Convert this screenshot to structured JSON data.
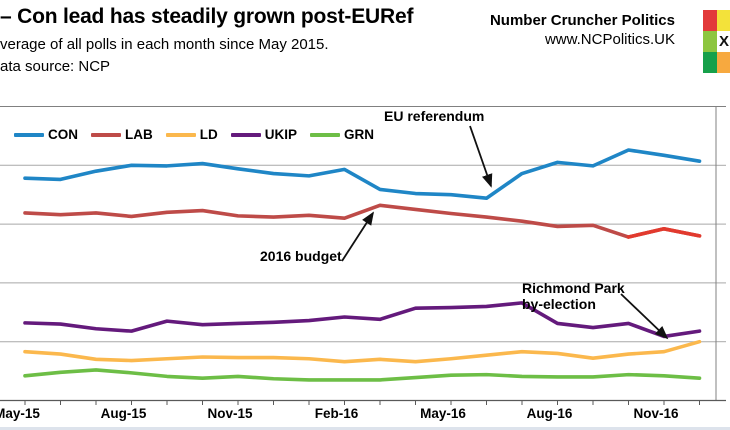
{
  "header": {
    "title": "– Con lead has steadily grown post-EURef",
    "subtitle": "verage of all polls in each month since May 2015.",
    "source": "ata source: NCP",
    "brand_name": "Number Cruncher Politics",
    "brand_url": "www.NCPolitics.UK"
  },
  "logo": {
    "x_glyph": "X",
    "cell_colors": [
      "#e23a3a",
      "#f3e23a",
      "#8dc63f",
      "X",
      "#16a04a",
      "#f7a93f"
    ]
  },
  "colors": {
    "grid": "#a8a8a8",
    "border": "#808080",
    "axis": "#595959",
    "annotation": "#111111"
  },
  "annotations": {
    "eu_referendum": "EU referendum",
    "budget_2016": "2016 budget",
    "richmond_line1": "Richmond Park",
    "richmond_line2": "by-election"
  },
  "chart_data": {
    "type": "line",
    "title": "Con lead has steadily grown post-EURef",
    "x_label": "",
    "y_label": "",
    "ylim": [
      0,
      50
    ],
    "gridline_step": 10,
    "grid": true,
    "legend_position": "top-left",
    "y_axis_labels_visible": false,
    "categories": [
      "May-15",
      "Jun-15",
      "Jul-15",
      "Aug-15",
      "Sep-15",
      "Oct-15",
      "Nov-15",
      "Dec-15",
      "Jan-16",
      "Feb-16",
      "Mar-16",
      "Apr-16",
      "May-16",
      "Jun-16",
      "Jul-16",
      "Aug-16",
      "Sep-16",
      "Oct-16",
      "Nov-16",
      "Dec-16"
    ],
    "x_tick_labels": [
      "May-15",
      "Aug-15",
      "Nov-15",
      "Feb-16",
      "May-16",
      "Aug-16",
      "Nov-16"
    ],
    "x_tick_indices": [
      0,
      3,
      6,
      9,
      12,
      15,
      18
    ],
    "series": [
      {
        "name": "CON",
        "color": "#1f86c6",
        "values": [
          37.8,
          37.6,
          39.0,
          40.0,
          39.9,
          40.3,
          39.4,
          38.6,
          38.2,
          39.3,
          35.9,
          35.2,
          35.0,
          34.4,
          38.6,
          40.5,
          39.9,
          42.6,
          41.7,
          40.7
        ]
      },
      {
        "name": "LAB",
        "color": "#be4b48",
        "highlight": {
          "from": 17,
          "color": "#e23a2e"
        },
        "values": [
          31.9,
          31.6,
          31.9,
          31.3,
          32.0,
          32.3,
          31.4,
          31.2,
          31.5,
          31.0,
          33.2,
          32.5,
          31.8,
          31.2,
          30.5,
          29.6,
          29.8,
          27.8,
          29.2,
          28.0
        ]
      },
      {
        "name": "LD",
        "color": "#fbb84d",
        "values": [
          8.3,
          7.9,
          7.0,
          6.8,
          7.1,
          7.4,
          7.3,
          7.3,
          7.1,
          6.6,
          7.0,
          6.6,
          7.1,
          7.7,
          8.3,
          8.0,
          7.2,
          7.9,
          8.3,
          10.0
        ]
      },
      {
        "name": "UKIP",
        "color": "#641a7c",
        "values": [
          13.2,
          13.0,
          12.2,
          11.8,
          13.5,
          12.9,
          13.1,
          13.3,
          13.6,
          14.2,
          13.8,
          15.7,
          15.8,
          16.0,
          16.6,
          13.1,
          12.4,
          13.1,
          10.9,
          11.8
        ]
      },
      {
        "name": "GRN",
        "color": "#6dbe46",
        "values": [
          4.2,
          4.8,
          5.2,
          4.7,
          4.1,
          3.8,
          4.1,
          3.7,
          3.5,
          3.5,
          3.5,
          3.9,
          4.3,
          4.4,
          4.1,
          4.0,
          4.0,
          4.4,
          4.2,
          3.8
        ]
      }
    ],
    "event_annotations": [
      {
        "text": "EU referendum",
        "points_to": "CON Jun-16"
      },
      {
        "text": "2016 budget",
        "points_to": "LAB Mar-16"
      },
      {
        "text": "Richmond Park by-election",
        "points_to": "LD Dec-16"
      }
    ]
  }
}
